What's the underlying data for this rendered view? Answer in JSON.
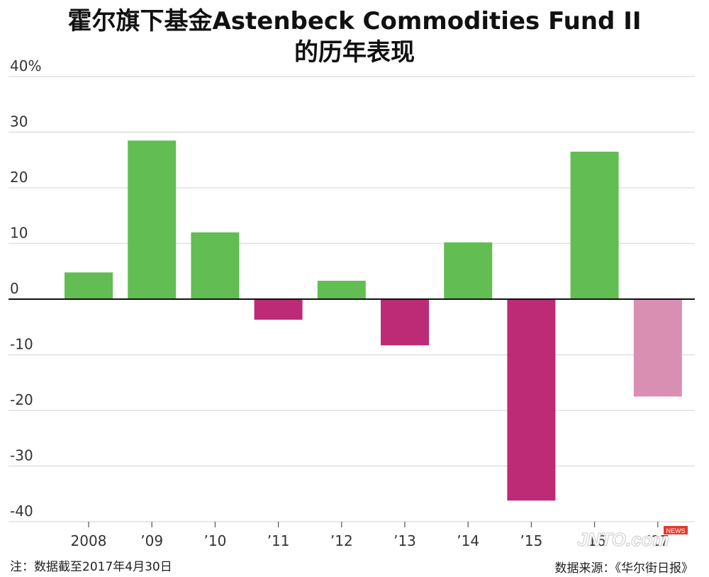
{
  "title_line1": "霍尔旗下基金Astenbeck Commodities Fund II",
  "title_line2": "的历年表现",
  "footnote": "注：数据截至2017年4月30日",
  "source": "数据来源：《华尔街日报》",
  "watermark": {
    "main": "JNTO.com",
    "badge": "NEWS"
  },
  "colors": {
    "positive": "#62bd53",
    "negative": "#bd2b77",
    "partial": "#d88fb2",
    "grid": "#e0e0e0",
    "zero": "#111111"
  },
  "chart_data": {
    "type": "bar",
    "categories": [
      "2008",
      "’09",
      "’10",
      "’11",
      "’12",
      "’13",
      "’14",
      "’15",
      "’16",
      "’17"
    ],
    "values": [
      4.8,
      28.5,
      12.0,
      -3.7,
      3.3,
      -8.3,
      10.2,
      -36.2,
      26.5,
      -17.5
    ],
    "partial_year": [
      false,
      false,
      false,
      false,
      false,
      false,
      false,
      false,
      false,
      true
    ],
    "ylim": [
      -40,
      40
    ],
    "yticks": [
      40,
      30,
      20,
      10,
      0,
      -10,
      -20,
      -30,
      -40
    ],
    "ytick_labels": [
      "40%",
      "30",
      "20",
      "10",
      "0",
      "-10",
      "-20",
      "-30",
      "-40"
    ],
    "grid": true
  }
}
